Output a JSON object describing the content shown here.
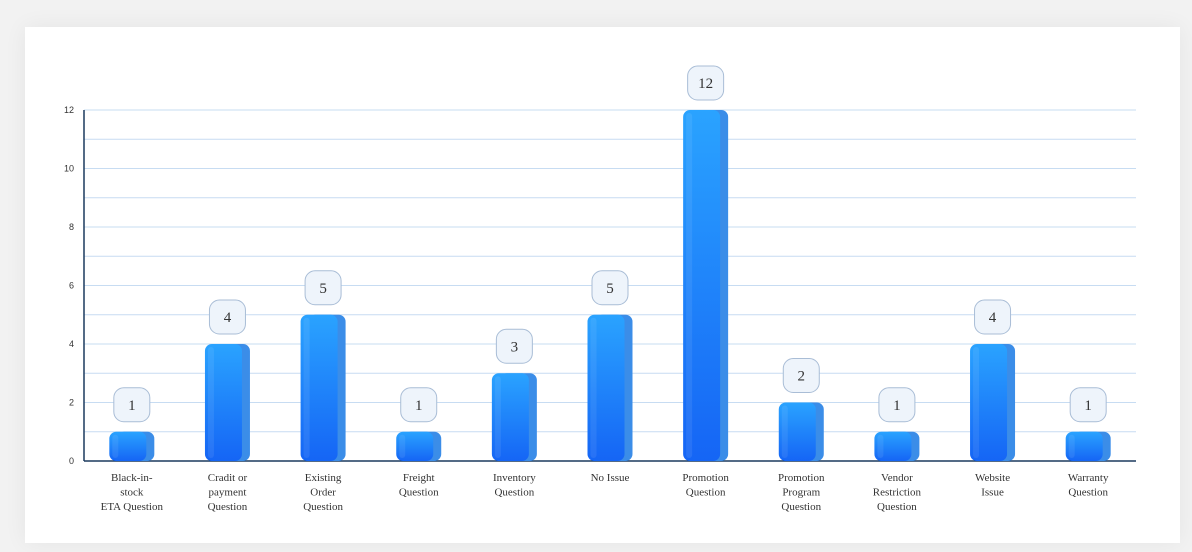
{
  "chart_data": {
    "type": "bar",
    "categories": [
      [
        "Black-in-",
        "stock",
        "ETA Question"
      ],
      [
        "Cradit or",
        "payment",
        "Question"
      ],
      [
        "Existing",
        "Order",
        "Question"
      ],
      [
        "Freight",
        "Question"
      ],
      [
        "Inventory",
        "Question"
      ],
      [
        "No Issue"
      ],
      [
        "Promotion",
        "Question"
      ],
      [
        "Promotion",
        "Program",
        "Question"
      ],
      [
        "Vendor",
        "Restriction",
        "Question"
      ],
      [
        "Website",
        "Issue"
      ],
      [
        "Warranty",
        "Question"
      ]
    ],
    "values": [
      1,
      4,
      5,
      1,
      3,
      5,
      12,
      2,
      1,
      4,
      1
    ],
    "ylim": [
      0,
      12
    ],
    "yticks": [
      0,
      2,
      4,
      6,
      8,
      10,
      12
    ],
    "grid": true,
    "legend": "none",
    "title": "",
    "xlabel": "",
    "ylabel": "",
    "colors": {
      "bar_top": "#2aa3ff",
      "bar_bottom": "#1565f5",
      "bar_side": "#3b8de8",
      "grid": "#c7dcf2",
      "axis": "#1c3a5e",
      "label_fill": "#eef4fb",
      "label_stroke": "#a9bdd6"
    }
  }
}
